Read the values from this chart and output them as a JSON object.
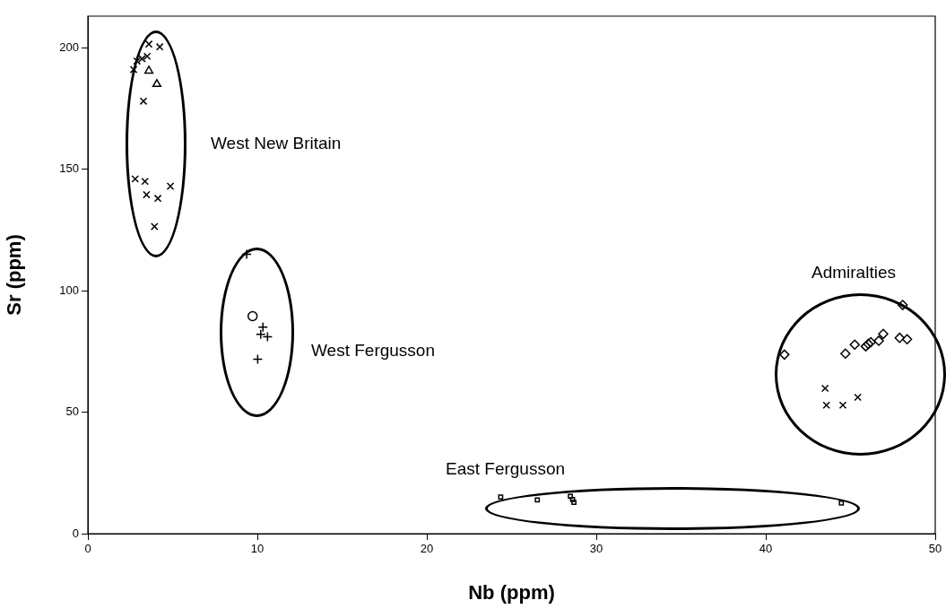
{
  "chart_data": {
    "type": "scatter",
    "xlabel": "Nb (ppm)",
    "ylabel": "Sr (ppm)",
    "xlim": [
      0,
      50
    ],
    "xticks": [
      0,
      10,
      20,
      30,
      40,
      50
    ],
    "ylim": [
      0,
      213
    ],
    "yticks": [
      0,
      50,
      100,
      150,
      200
    ],
    "grid": false,
    "legend": false,
    "series": [
      {
        "color": "#000000",
        "marker": "cross",
        "x": [
          3.6,
          4.24,
          2.9,
          3.2,
          3.5,
          2.7,
          3.28,
          2.79,
          3.37,
          3.46,
          4.13,
          4.87,
          3.93
        ],
        "values": [
          201.5,
          200.4,
          194.5,
          195.5,
          196.5,
          191,
          178,
          146,
          145,
          139.5,
          138,
          143,
          126.4
        ]
      },
      {
        "color": "#000000",
        "marker": "triangle",
        "x": [
          3.6,
          4.07
        ],
        "values": [
          190.5,
          185
        ]
      },
      {
        "color": "#000000",
        "marker": "plus",
        "x": [
          9.37,
          10.33,
          10.2,
          10.6,
          10.02
        ],
        "values": [
          115,
          85,
          82,
          81,
          71.8
        ]
      },
      {
        "color": "#000000",
        "marker": "circle",
        "x": [
          9.72
        ],
        "values": [
          89.5
        ]
      },
      {
        "color": "#000000",
        "marker": "diamond",
        "x": [
          41.1,
          44.7,
          45.25,
          45.9,
          46.05,
          46.2,
          46.67,
          46.93,
          48.08,
          47.9,
          48.34
        ],
        "values": [
          73.7,
          74.1,
          77.8,
          77.1,
          78.1,
          78.8,
          79.4,
          82.2,
          94.1,
          80.6,
          80
        ]
      },
      {
        "color": "#000000",
        "marker": "cross",
        "x": [
          43.5,
          43.58,
          44.55,
          45.43
        ],
        "values": [
          59.8,
          52.9,
          52.9,
          56.1
        ]
      },
      {
        "color": "#000000",
        "marker": "square",
        "x": [
          24.36,
          26.52,
          28.47,
          28.6,
          28.68,
          44.46
        ],
        "values": [
          15.1,
          13.9,
          15.4,
          14.1,
          12.9,
          12.6
        ]
      }
    ],
    "annotations": [
      "West New Britain",
      "West Fergusson",
      "Admiralties",
      "East Fergusson"
    ]
  }
}
